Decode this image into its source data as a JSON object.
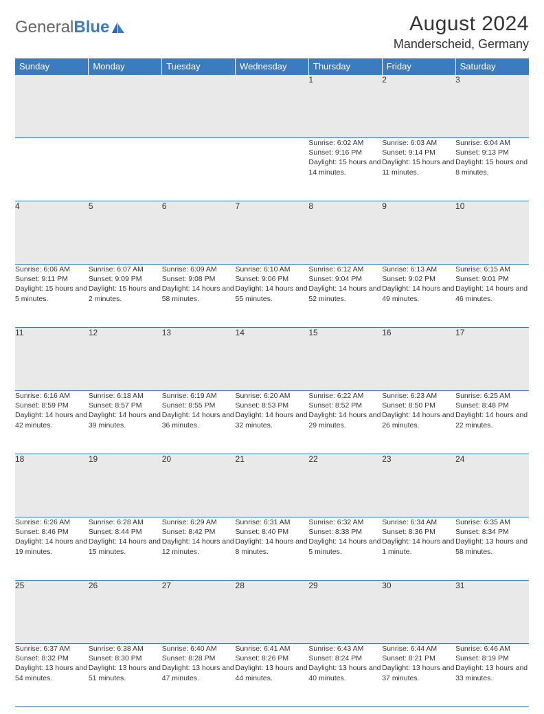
{
  "logo": {
    "text1": "General",
    "text2": "Blue"
  },
  "title": "August 2024",
  "location": "Manderscheid, Germany",
  "header_bg": "#3b7bbf",
  "header_fg": "#ffffff",
  "daynum_bg": "#e9e9e9",
  "rule_color": "#3b7bbf",
  "days_of_week": [
    "Sunday",
    "Monday",
    "Tuesday",
    "Wednesday",
    "Thursday",
    "Friday",
    "Saturday"
  ],
  "weeks": [
    {
      "nums": [
        "",
        "",
        "",
        "",
        "1",
        "2",
        "3"
      ],
      "cells": [
        null,
        null,
        null,
        null,
        {
          "sunrise": "6:02 AM",
          "sunset": "9:16 PM",
          "daylight": "15 hours and 14 minutes."
        },
        {
          "sunrise": "6:03 AM",
          "sunset": "9:14 PM",
          "daylight": "15 hours and 11 minutes."
        },
        {
          "sunrise": "6:04 AM",
          "sunset": "9:13 PM",
          "daylight": "15 hours and 8 minutes."
        }
      ]
    },
    {
      "nums": [
        "4",
        "5",
        "6",
        "7",
        "8",
        "9",
        "10"
      ],
      "cells": [
        {
          "sunrise": "6:06 AM",
          "sunset": "9:11 PM",
          "daylight": "15 hours and 5 minutes."
        },
        {
          "sunrise": "6:07 AM",
          "sunset": "9:09 PM",
          "daylight": "15 hours and 2 minutes."
        },
        {
          "sunrise": "6:09 AM",
          "sunset": "9:08 PM",
          "daylight": "14 hours and 58 minutes."
        },
        {
          "sunrise": "6:10 AM",
          "sunset": "9:06 PM",
          "daylight": "14 hours and 55 minutes."
        },
        {
          "sunrise": "6:12 AM",
          "sunset": "9:04 PM",
          "daylight": "14 hours and 52 minutes."
        },
        {
          "sunrise": "6:13 AM",
          "sunset": "9:02 PM",
          "daylight": "14 hours and 49 minutes."
        },
        {
          "sunrise": "6:15 AM",
          "sunset": "9:01 PM",
          "daylight": "14 hours and 46 minutes."
        }
      ]
    },
    {
      "nums": [
        "11",
        "12",
        "13",
        "14",
        "15",
        "16",
        "17"
      ],
      "cells": [
        {
          "sunrise": "6:16 AM",
          "sunset": "8:59 PM",
          "daylight": "14 hours and 42 minutes."
        },
        {
          "sunrise": "6:18 AM",
          "sunset": "8:57 PM",
          "daylight": "14 hours and 39 minutes."
        },
        {
          "sunrise": "6:19 AM",
          "sunset": "8:55 PM",
          "daylight": "14 hours and 36 minutes."
        },
        {
          "sunrise": "6:20 AM",
          "sunset": "8:53 PM",
          "daylight": "14 hours and 32 minutes."
        },
        {
          "sunrise": "6:22 AM",
          "sunset": "8:52 PM",
          "daylight": "14 hours and 29 minutes."
        },
        {
          "sunrise": "6:23 AM",
          "sunset": "8:50 PM",
          "daylight": "14 hours and 26 minutes."
        },
        {
          "sunrise": "6:25 AM",
          "sunset": "8:48 PM",
          "daylight": "14 hours and 22 minutes."
        }
      ]
    },
    {
      "nums": [
        "18",
        "19",
        "20",
        "21",
        "22",
        "23",
        "24"
      ],
      "cells": [
        {
          "sunrise": "6:26 AM",
          "sunset": "8:46 PM",
          "daylight": "14 hours and 19 minutes."
        },
        {
          "sunrise": "6:28 AM",
          "sunset": "8:44 PM",
          "daylight": "14 hours and 15 minutes."
        },
        {
          "sunrise": "6:29 AM",
          "sunset": "8:42 PM",
          "daylight": "14 hours and 12 minutes."
        },
        {
          "sunrise": "6:31 AM",
          "sunset": "8:40 PM",
          "daylight": "14 hours and 8 minutes."
        },
        {
          "sunrise": "6:32 AM",
          "sunset": "8:38 PM",
          "daylight": "14 hours and 5 minutes."
        },
        {
          "sunrise": "6:34 AM",
          "sunset": "8:36 PM",
          "daylight": "14 hours and 1 minute."
        },
        {
          "sunrise": "6:35 AM",
          "sunset": "8:34 PM",
          "daylight": "13 hours and 58 minutes."
        }
      ]
    },
    {
      "nums": [
        "25",
        "26",
        "27",
        "28",
        "29",
        "30",
        "31"
      ],
      "cells": [
        {
          "sunrise": "6:37 AM",
          "sunset": "8:32 PM",
          "daylight": "13 hours and 54 minutes."
        },
        {
          "sunrise": "6:38 AM",
          "sunset": "8:30 PM",
          "daylight": "13 hours and 51 minutes."
        },
        {
          "sunrise": "6:40 AM",
          "sunset": "8:28 PM",
          "daylight": "13 hours and 47 minutes."
        },
        {
          "sunrise": "6:41 AM",
          "sunset": "8:26 PM",
          "daylight": "13 hours and 44 minutes."
        },
        {
          "sunrise": "6:43 AM",
          "sunset": "8:24 PM",
          "daylight": "13 hours and 40 minutes."
        },
        {
          "sunrise": "6:44 AM",
          "sunset": "8:21 PM",
          "daylight": "13 hours and 37 minutes."
        },
        {
          "sunrise": "6:46 AM",
          "sunset": "8:19 PM",
          "daylight": "13 hours and 33 minutes."
        }
      ]
    }
  ],
  "labels": {
    "sunrise": "Sunrise:",
    "sunset": "Sunset:",
    "daylight": "Daylight:"
  }
}
